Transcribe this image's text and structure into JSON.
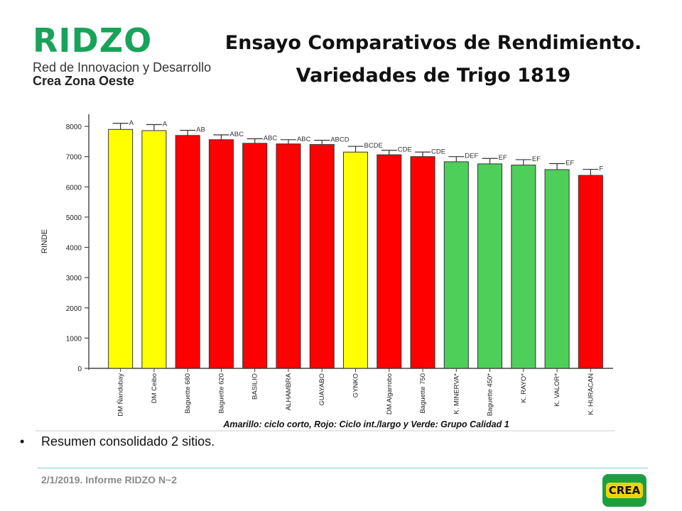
{
  "logo": {
    "name": "RIDZO",
    "line1": "Red de Innovacion y Desarrollo",
    "line2": "Crea Zona Oeste"
  },
  "title": {
    "line1": "Ensayo Comparativos de Rendimiento.",
    "line2": "Variedades de Trigo 1819"
  },
  "colors": {
    "yellow": "#ffff00",
    "red": "#ff0000",
    "green": "#4dcf5a"
  },
  "chart_data": {
    "type": "bar",
    "ylabel": "RINDE",
    "ylim": [
      0,
      8400
    ],
    "yticks": [
      0,
      1000,
      2000,
      3000,
      4000,
      5000,
      6000,
      7000,
      8000
    ],
    "grid": false,
    "caption": "Amarillo: ciclo corto, Rojo: Ciclo int./largo y Verde: Grupo Calidad 1",
    "categories": [
      "DM Ñandubay",
      "DM Ceibo",
      "Baguette 680",
      "Baguette 620",
      "BASILIO",
      "ALHAMBRA",
      "GUAYABO",
      "GYNKO",
      "DM Algarrobo",
      "Baguette 750",
      "K. MINERVA*",
      "Baguette 450*",
      "K. RAYO*",
      "K. VALOR*",
      "K. HURACAN"
    ],
    "values": [
      7900,
      7860,
      7700,
      7560,
      7440,
      7420,
      7400,
      7150,
      7060,
      7000,
      6830,
      6760,
      6720,
      6570,
      6380
    ],
    "errors": [
      200,
      200,
      170,
      160,
      150,
      140,
      140,
      190,
      150,
      150,
      170,
      180,
      180,
      200,
      200
    ],
    "letters": [
      "A",
      "A",
      "AB",
      "ABC",
      "ABC",
      "ABC",
      "ABCD",
      "BCDE",
      "CDE",
      "CDE",
      "DEF",
      "EF",
      "EF",
      "EF",
      "F"
    ],
    "bar_colors": [
      "yellow",
      "yellow",
      "red",
      "red",
      "red",
      "red",
      "red",
      "yellow",
      "red",
      "red",
      "green",
      "green",
      "green",
      "green",
      "red"
    ]
  },
  "bullet": "Resumen consolidado 2 sitios.",
  "footer": "2/1/2019. Informe RIDZO N~2",
  "crea_logo": "CREA"
}
